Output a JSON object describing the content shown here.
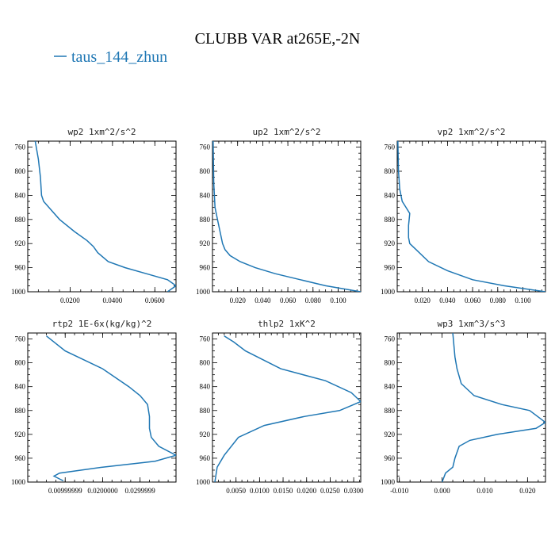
{
  "figure": {
    "title": "CLUBB VAR at265E,-2N",
    "legend": [
      {
        "name": "taus_144_zhun",
        "color": "#1f77b4"
      }
    ]
  },
  "chart_data": [
    {
      "type": "line",
      "title": "wp2   1xm^2/s^2",
      "xlim": [
        0.0,
        0.07
      ],
      "ylim": [
        750,
        1000
      ],
      "y_inverted": true,
      "xticks": [
        0.02,
        0.04,
        0.06
      ],
      "xtick_labels": [
        "0.0200",
        "0.0400",
        "0.0600"
      ],
      "yticks": [
        760,
        800,
        840,
        880,
        920,
        960,
        1000
      ],
      "series": [
        {
          "x": [
            0.0035,
            0.005,
            0.006,
            0.0065,
            0.0075,
            0.01,
            0.015,
            0.022,
            0.028,
            0.031,
            0.033,
            0.038,
            0.046,
            0.056,
            0.066,
            0.07,
            0.066
          ],
          "y": [
            750,
            780,
            810,
            840,
            850,
            860,
            880,
            900,
            915,
            925,
            935,
            950,
            960,
            970,
            980,
            990,
            1000
          ]
        }
      ]
    },
    {
      "type": "line",
      "title": "up2   1xm^2/s^2",
      "xlim": [
        0.0,
        0.118
      ],
      "ylim": [
        750,
        1000
      ],
      "y_inverted": true,
      "xticks": [
        0.02,
        0.04,
        0.06,
        0.08,
        0.1
      ],
      "xtick_labels": [
        "0.020",
        "0.040",
        "0.060",
        "0.080",
        "0.100"
      ],
      "yticks": [
        760,
        800,
        840,
        880,
        920,
        960,
        1000
      ],
      "series": [
        {
          "x": [
            0.0005,
            0.001,
            0.002,
            0.004,
            0.006,
            0.008,
            0.01,
            0.014,
            0.022,
            0.034,
            0.05,
            0.07,
            0.09,
            0.118
          ],
          "y": [
            750,
            820,
            860,
            880,
            900,
            920,
            930,
            940,
            950,
            960,
            970,
            980,
            990,
            1000
          ]
        }
      ]
    },
    {
      "type": "line",
      "title": "vp2   1xm^2/s^2",
      "xlim": [
        0.0,
        0.118
      ],
      "ylim": [
        750,
        1000
      ],
      "y_inverted": true,
      "xticks": [
        0.02,
        0.04,
        0.06,
        0.08,
        0.1
      ],
      "xtick_labels": [
        "0.020",
        "0.040",
        "0.060",
        "0.080",
        "0.100"
      ],
      "yticks": [
        760,
        800,
        840,
        880,
        920,
        960,
        1000
      ],
      "series": [
        {
          "x": [
            0.0005,
            0.001,
            0.002,
            0.004,
            0.007,
            0.01,
            0.009,
            0.009,
            0.01,
            0.015,
            0.025,
            0.04,
            0.06,
            0.085,
            0.118
          ],
          "y": [
            750,
            800,
            830,
            850,
            860,
            870,
            890,
            910,
            920,
            930,
            950,
            965,
            980,
            990,
            1000
          ]
        }
      ]
    },
    {
      "type": "line",
      "title": "rtp2   1E-6x(kg/kg)^2",
      "xlim": [
        0.0,
        0.0396
      ],
      "ylim": [
        750,
        1000
      ],
      "y_inverted": true,
      "xticks": [
        0.01,
        0.02,
        0.03
      ],
      "xtick_labels": [
        "0.00999999",
        "0.0200000",
        "0.0299999"
      ],
      "yticks": [
        760,
        800,
        840,
        880,
        920,
        960,
        1000
      ],
      "series": [
        {
          "x": [
            0.005,
            0.01,
            0.02,
            0.027,
            0.03,
            0.032,
            0.0325,
            0.0325,
            0.033,
            0.035,
            0.0396,
            0.034,
            0.02,
            0.0085,
            0.007,
            0.0095
          ],
          "y": [
            755,
            780,
            810,
            840,
            855,
            870,
            890,
            910,
            925,
            940,
            955,
            965,
            975,
            985,
            990,
            998
          ]
        }
      ]
    },
    {
      "type": "line",
      "title": "thlp2   1xK^2",
      "xlim": [
        0.0,
        0.0315
      ],
      "ylim": [
        750,
        1000
      ],
      "y_inverted": true,
      "xticks": [
        0.005,
        0.01,
        0.015,
        0.02,
        0.025,
        0.03
      ],
      "xtick_labels": [
        "0.0050",
        "0.0100",
        "0.0150",
        "0.0200",
        "0.0250",
        "0.0300"
      ],
      "yticks": [
        760,
        800,
        840,
        880,
        920,
        960,
        1000
      ],
      "series": [
        {
          "x": [
            0.0025,
            0.0045,
            0.007,
            0.0145,
            0.024,
            0.0295,
            0.0315,
            0.027,
            0.0195,
            0.011,
            0.0055,
            0.0025,
            0.001,
            0.0005
          ],
          "y": [
            755,
            765,
            780,
            810,
            830,
            850,
            865,
            880,
            890,
            905,
            925,
            955,
            975,
            1000
          ]
        }
      ]
    },
    {
      "type": "line",
      "title": "wp3   1xm^3/s^3",
      "xlim": [
        -0.0105,
        0.0242
      ],
      "ylim": [
        750,
        1000
      ],
      "y_inverted": true,
      "xticks": [
        -0.01,
        0.0,
        0.01,
        0.02
      ],
      "xtick_labels": [
        "-0.010",
        "0.000",
        "0.010",
        "0.020"
      ],
      "yticks": [
        760,
        800,
        840,
        880,
        920,
        960,
        1000
      ],
      "series": [
        {
          "x": [
            0.0025,
            0.003,
            0.0035,
            0.0045,
            0.0075,
            0.014,
            0.0205,
            0.0242,
            0.022,
            0.013,
            0.0065,
            0.004,
            0.003,
            0.0025,
            0.0008,
            0.0
          ],
          "y": [
            750,
            790,
            810,
            835,
            855,
            870,
            880,
            900,
            910,
            920,
            930,
            940,
            960,
            975,
            985,
            1000
          ]
        }
      ]
    }
  ]
}
